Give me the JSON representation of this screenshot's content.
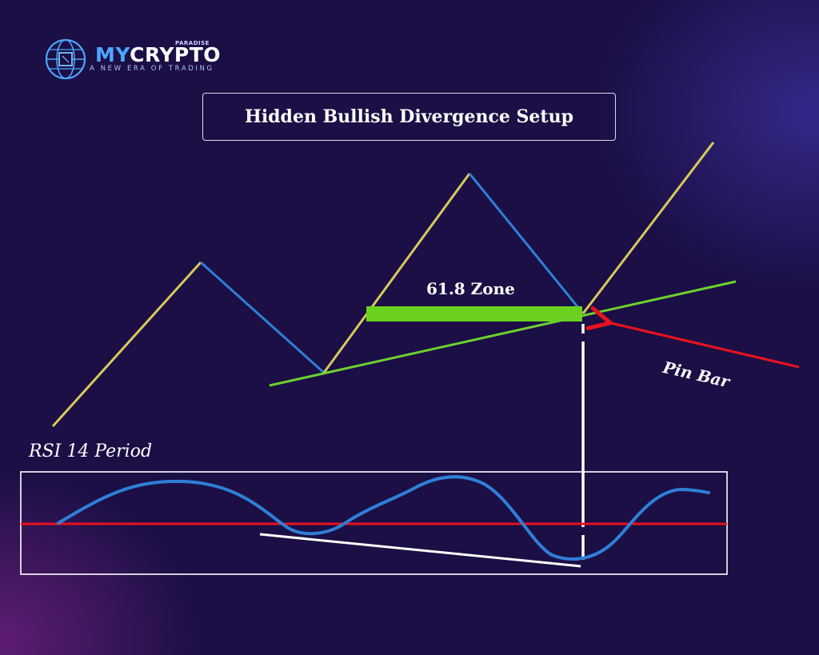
{
  "brand": {
    "name_part1": "MY",
    "name_part2": "CRYPTO",
    "superscript": "PARADISE",
    "tagline": "A NEW ERA OF TRADING",
    "logo_icon": "globe-chip-icon"
  },
  "title": "Hidden Bullish Divergence Setup",
  "labels": {
    "zone": "61.8 Zone",
    "pin_bar": "Pin Bar",
    "rsi": "RSI 14 Period"
  },
  "colors": {
    "upswing": "#d9c85a",
    "downswing": "#2f7fd6",
    "trendline": "#6cd12f",
    "zone_fill": "#6ad21e",
    "arrow": "#e8121f",
    "rsi_line": "#2f7fd6",
    "rsi_midline": "#e8121f",
    "divergence_line": "#ffffff"
  }
}
